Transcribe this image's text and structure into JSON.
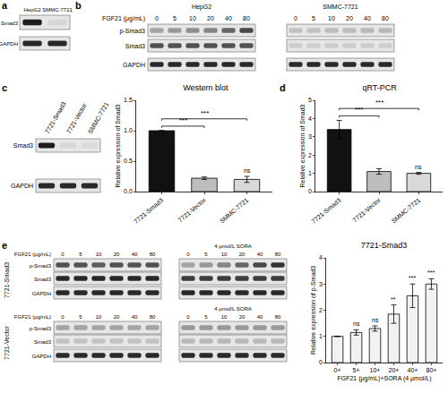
{
  "chart_data": [
    {
      "type": "bar",
      "title": "Western blot",
      "categories": [
        "7721-Smad3",
        "7721-Vector",
        "SMMC-7721"
      ],
      "values": [
        1.0,
        0.22,
        0.2
      ],
      "errors": [
        0.0,
        0.02,
        0.05
      ],
      "colors": [
        "#111111",
        "#bdbdbd",
        "#d9d9d9"
      ],
      "y_label": "Relative expression of Smad3",
      "ylim": [
        0,
        1.5
      ],
      "yticks": [
        {
          "value": 0,
          "label": "0.0"
        },
        {
          "value": 0.5,
          "label": "0.5"
        },
        {
          "value": 1,
          "label": "1.0"
        },
        {
          "value": 1.5,
          "label": "1.5"
        }
      ],
      "grid": false,
      "significance": [
        {
          "from": "7721-Smad3",
          "to": "7721-Vector",
          "text": "***"
        },
        {
          "from": "7721-Smad3",
          "to": "SMMC-7721",
          "text": "***"
        },
        {
          "at": "SMMC-7721",
          "text": "ns"
        }
      ]
    },
    {
      "type": "bar",
      "title": "qRT-PCR",
      "categories": [
        "7721-Smad3",
        "7721-Vector",
        "SMMC-7721"
      ],
      "values": [
        3.4,
        1.1,
        1.0
      ],
      "errors": [
        0.5,
        0.15,
        0.05
      ],
      "colors": [
        "#111111",
        "#bdbdbd",
        "#d9d9d9"
      ],
      "y_label": "Relative expression of Smad3",
      "ylim": [
        0,
        5
      ],
      "yticks": [
        0,
        1,
        2,
        3,
        4,
        5
      ],
      "grid": false,
      "significance": [
        {
          "from": "7721-Smad3",
          "to": "7721-Vector",
          "text": "***"
        },
        {
          "from": "7721-Smad3",
          "to": "SMMC-7721",
          "text": "***"
        },
        {
          "at": "SMMC-7721",
          "text": "ns"
        }
      ]
    },
    {
      "type": "bar",
      "title": "7721-Smad3",
      "categories": [
        "0+",
        "5+",
        "10+",
        "20+",
        "40+",
        "80+"
      ],
      "values": [
        1.0,
        1.15,
        1.3,
        1.85,
        2.55,
        3.0
      ],
      "errors": [
        0.0,
        0.1,
        0.1,
        0.35,
        0.45,
        0.2
      ],
      "color": "#f2f2f2",
      "x_label": "FGF21 (μg/mL)+SORA (4 μmol/L)",
      "y_label": "Relative expression of p-Smad3",
      "ylim": [
        0,
        4
      ],
      "yticks": [
        0,
        1,
        2,
        3,
        4
      ],
      "grid": false,
      "significance": [
        {
          "at": "5+",
          "text": "ns"
        },
        {
          "at": "10+",
          "text": "ns"
        },
        {
          "at": "20+",
          "text": "**"
        },
        {
          "at": "40+",
          "text": "***"
        },
        {
          "at": "80+",
          "text": "***"
        }
      ]
    }
  ],
  "panel_labels": [
    "a",
    "b",
    "c",
    "d",
    "e"
  ],
  "blots": {
    "a": {
      "lanes": [
        "HepG2",
        "SMMC-7721"
      ],
      "rows": [
        {
          "label": "Smad3",
          "bands": [
            0.95,
            0.05
          ]
        },
        {
          "label": "GAPDH",
          "bands": [
            0.9,
            0.9
          ]
        }
      ]
    },
    "b": {
      "treatment": "FGF21 (μg/mL)",
      "doses": [
        0,
        5,
        10,
        20,
        40,
        80
      ],
      "groups": [
        {
          "label": "HepG2",
          "rows": [
            {
              "label": "p-Smad3",
              "bands": [
                0.3,
                0.35,
                0.4,
                0.45,
                0.6,
                0.75
              ]
            },
            {
              "label": "Smad3",
              "bands": [
                0.7,
                0.7,
                0.7,
                0.7,
                0.7,
                0.7
              ]
            },
            {
              "label": "GAPDH",
              "bands": [
                0.9,
                0.9,
                0.9,
                0.9,
                0.9,
                0.9
              ]
            }
          ]
        },
        {
          "label": "SMMC-7721",
          "rows": [
            {
              "label": "p-Smad3",
              "bands": [
                0.15,
                0.15,
                0.18,
                0.18,
                0.2,
                0.2
              ]
            },
            {
              "label": "Smad3",
              "bands": [
                0.1,
                0.1,
                0.1,
                0.1,
                0.1,
                0.1
              ]
            },
            {
              "label": "GAPDH",
              "bands": [
                0.9,
                0.9,
                0.9,
                0.9,
                0.9,
                0.9
              ]
            }
          ]
        }
      ]
    },
    "c": {
      "lanes": [
        "7721-Smad3",
        "7721-Vector",
        "SMMC-7721"
      ],
      "rows": [
        {
          "label": "Smad3",
          "bands": [
            0.95,
            0.05,
            0.03
          ]
        },
        {
          "label": "GAPDH",
          "bands": [
            0.9,
            0.9,
            0.9
          ]
        }
      ]
    },
    "e": {
      "treatment": "FGF21 (μg/mL)",
      "doses": [
        0,
        5,
        10,
        20,
        40,
        80
      ],
      "condition": "4 μmol/L SORA",
      "lines": [
        {
          "label": "7721-Smad3",
          "panels": [
            [
              {
                "label": "p-Smad3",
                "bands": [
                  0.7,
                  0.7,
                  0.65,
                  0.7,
                  0.7,
                  0.7
                ]
              },
              {
                "label": "Smad3",
                "bands": [
                  0.9,
                  0.9,
                  0.9,
                  0.9,
                  0.9,
                  0.9
                ]
              },
              {
                "label": "GAPDH",
                "bands": [
                  0.9,
                  0.9,
                  0.9,
                  0.9,
                  0.9,
                  0.9
                ]
              }
            ],
            [
              {
                "label": "p-Smad3",
                "bands": [
                  0.3,
                  0.35,
                  0.45,
                  0.6,
                  0.75,
                  0.85
                ]
              },
              {
                "label": "Smad3",
                "bands": [
                  0.8,
                  0.8,
                  0.8,
                  0.8,
                  0.8,
                  0.8
                ]
              },
              {
                "label": "GAPDH",
                "bands": [
                  0.9,
                  0.9,
                  0.9,
                  0.9,
                  0.9,
                  0.9
                ]
              }
            ]
          ]
        },
        {
          "label": "7721-Vector",
          "panels": [
            [
              {
                "label": "p-Smad3",
                "bands": [
                  0.3,
                  0.3,
                  0.3,
                  0.3,
                  0.3,
                  0.3
                ]
              },
              {
                "label": "Smad3",
                "bands": [
                  0.15,
                  0.15,
                  0.15,
                  0.15,
                  0.15,
                  0.15
                ]
              },
              {
                "label": "GAPDH",
                "bands": [
                  0.9,
                  0.9,
                  0.9,
                  0.9,
                  0.9,
                  0.9
                ]
              }
            ],
            [
              {
                "label": "p-Smad3",
                "bands": [
                  0.35,
                  0.35,
                  0.35,
                  0.35,
                  0.35,
                  0.35
                ]
              },
              {
                "label": "Smad3",
                "bands": [
                  0.2,
                  0.2,
                  0.2,
                  0.2,
                  0.2,
                  0.2
                ]
              },
              {
                "label": "GAPDH",
                "bands": [
                  0.9,
                  0.9,
                  0.9,
                  0.9,
                  0.9,
                  0.9
                ]
              }
            ]
          ]
        }
      ]
    }
  }
}
